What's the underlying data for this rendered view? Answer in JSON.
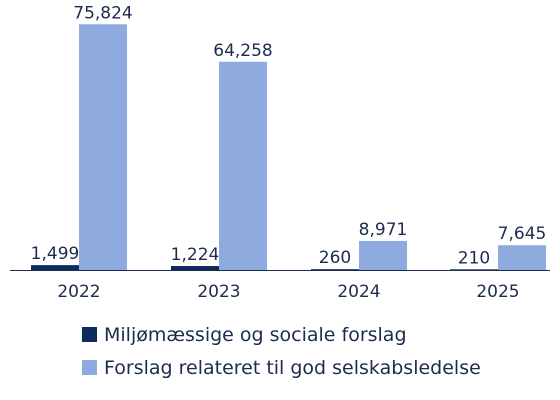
{
  "chart_data": {
    "type": "bar",
    "title": "",
    "xlabel": "",
    "ylabel": "",
    "categories": [
      "2022",
      "2023",
      "2024",
      "2025"
    ],
    "series": [
      {
        "name": "Miljømæssige og sociale forslag",
        "color": "#0f2a5c",
        "values": [
          1499,
          1224,
          260,
          210
        ],
        "labels": [
          "1,499",
          "1,224",
          "260",
          "210"
        ]
      },
      {
        "name": "Forslag relateret til god selskabsledelse",
        "color": "#8eaadf",
        "values": [
          75824,
          64258,
          8971,
          7645
        ],
        "labels": [
          "75,824",
          "64,258",
          "8,971",
          "7,645"
        ]
      }
    ],
    "ylim": [
      0,
      79000
    ],
    "grid": false,
    "legend_position": "bottom-left"
  }
}
